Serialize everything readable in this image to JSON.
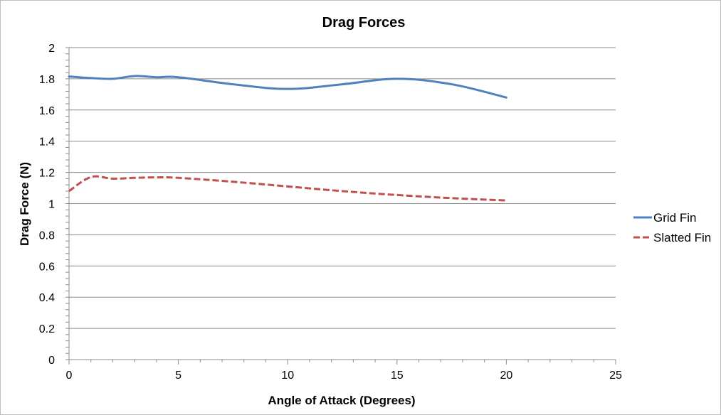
{
  "chart_data": {
    "type": "line",
    "title": "Drag Forces",
    "xlabel": "Angle of Attack (Degrees)",
    "ylabel": "Drag Force (N)",
    "xlim": [
      0,
      25
    ],
    "ylim": [
      0,
      2
    ],
    "x_ticks": [
      0,
      5,
      10,
      15,
      20,
      25
    ],
    "y_ticks": [
      0,
      0.2,
      0.4,
      0.6,
      0.8,
      1,
      1.2,
      1.4,
      1.6,
      1.8,
      2
    ],
    "x_tick_labels": [
      "0",
      "5",
      "10",
      "15",
      "20",
      "25"
    ],
    "y_tick_labels": [
      "0",
      "0.2",
      "0.4",
      "0.6",
      "0.8",
      "1",
      "1.2",
      "1.4",
      "1.6",
      "1.8",
      "2"
    ],
    "grid": "horizontal",
    "legend_position": "right",
    "series": [
      {
        "name": "Grid Fin",
        "color": "#4f81bd",
        "dash": "solid",
        "x": [
          0,
          1,
          2,
          3,
          4,
          5,
          7.5,
          10,
          12.5,
          15,
          17.5,
          20
        ],
        "y": [
          1.815,
          1.805,
          1.8,
          1.818,
          1.81,
          1.81,
          1.765,
          1.735,
          1.765,
          1.8,
          1.765,
          1.68
        ]
      },
      {
        "name": "Slatted Fin",
        "color": "#c0504d",
        "dash": "dashed",
        "x": [
          0,
          1,
          2,
          3,
          4,
          5,
          7.5,
          10,
          12.5,
          15,
          17.5,
          20
        ],
        "y": [
          1.08,
          1.17,
          1.16,
          1.165,
          1.168,
          1.165,
          1.14,
          1.11,
          1.08,
          1.055,
          1.035,
          1.02
        ]
      }
    ]
  }
}
